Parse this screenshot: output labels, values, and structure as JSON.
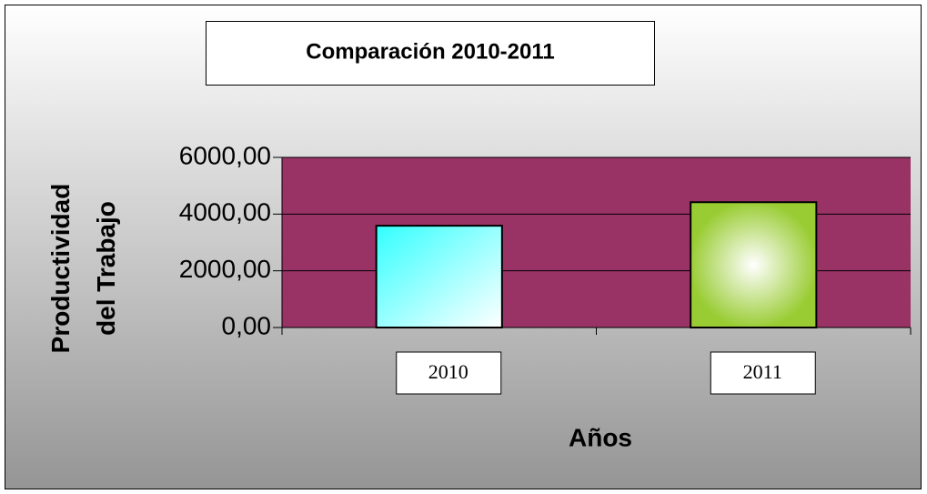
{
  "chart_data": {
    "type": "bar",
    "title": "Comparación 2010-2011",
    "categories": [
      "2010",
      "2011"
    ],
    "values": [
      3590,
      4420
    ],
    "colors": [
      "#33ffff",
      "#99cc33"
    ],
    "plot_background": "#993366",
    "x_label": "Años",
    "y_label": "Productividad del Trabajo",
    "ylim": [
      0,
      6000
    ],
    "yticks": [
      {
        "value": 0,
        "label": "0,00"
      },
      {
        "value": 2000,
        "label": "2000,00"
      },
      {
        "value": 4000,
        "label": "4000,00"
      },
      {
        "value": 6000,
        "label": "6000,00"
      }
    ],
    "grid": true
  }
}
